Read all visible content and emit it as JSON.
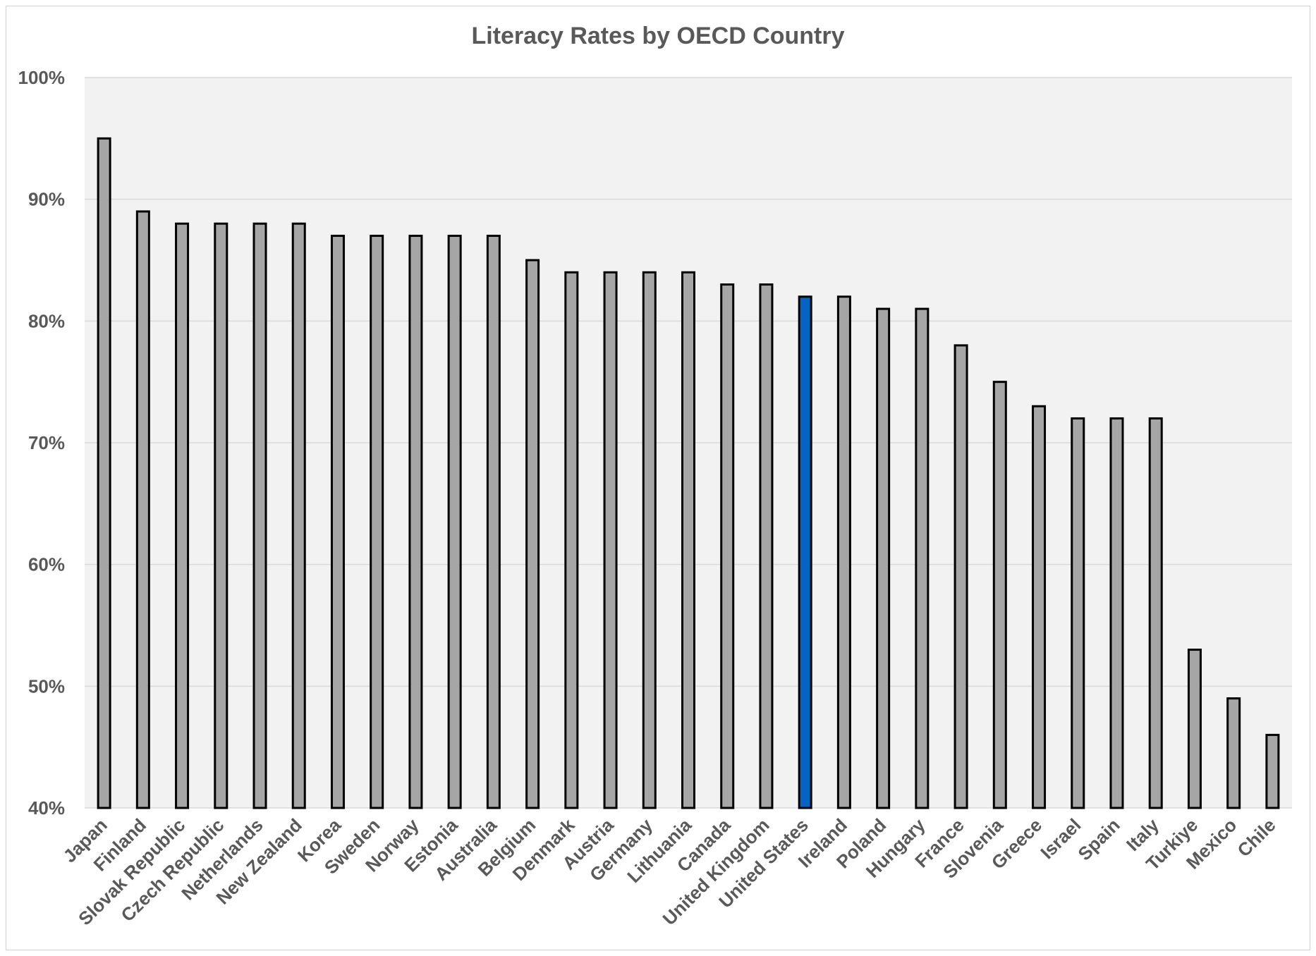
{
  "chart_data": {
    "type": "bar",
    "title": "Literacy Rates by OECD Country",
    "xlabel": "",
    "ylabel": "",
    "ylim": [
      40,
      100
    ],
    "yticks": [
      "40%",
      "50%",
      "60%",
      "70%",
      "80%",
      "90%",
      "100%"
    ],
    "ytick_values": [
      40,
      50,
      60,
      70,
      80,
      90,
      100
    ],
    "grid": true,
    "legend": "none",
    "categories": [
      "Japan",
      "Finland",
      "Slovak Republic",
      "Czech Republic",
      "Netherlands",
      "New Zealand",
      "Korea",
      "Sweden",
      "Norway",
      "Estonia",
      "Australia",
      "Belgium",
      "Denmark",
      "Austria",
      "Germany",
      "Lithuania",
      "Canada",
      "United Kingdom",
      "United States",
      "Ireland",
      "Poland",
      "Hungary",
      "France",
      "Slovenia",
      "Greece",
      "Israel",
      "Spain",
      "Italy",
      "Turkiye",
      "Mexico",
      "Chile"
    ],
    "values": [
      95,
      89,
      88,
      88,
      88,
      88,
      87,
      87,
      87,
      87,
      87,
      85,
      84,
      84,
      84,
      84,
      83,
      83,
      82,
      82,
      81,
      81,
      78,
      75,
      73,
      72,
      72,
      72,
      53,
      49,
      46
    ],
    "highlight": "United States",
    "colors": {
      "bar": "#A6A6A6",
      "highlight_bar": "#0563C1",
      "bar_outline": "#000000",
      "plot_background": "#F2F2F2",
      "gridline": "#D9D9D9",
      "text": "#595959"
    }
  }
}
